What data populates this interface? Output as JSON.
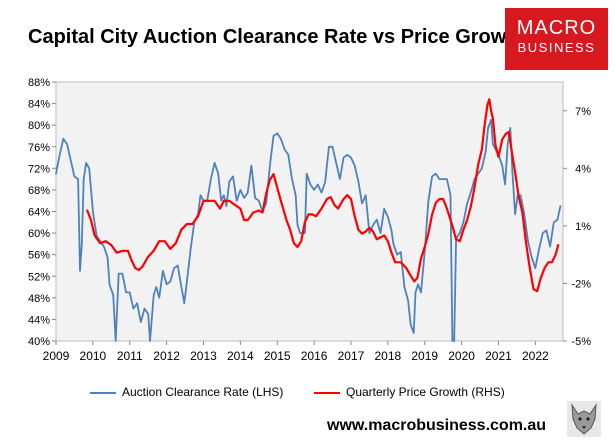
{
  "chart_data": {
    "type": "line",
    "title": "Capital City Auction Clearance Rate vs Price Growth",
    "x_ticks": [
      "2009",
      "2010",
      "2011",
      "2012",
      "2013",
      "2014",
      "2015",
      "2016",
      "2017",
      "2018",
      "2019",
      "2020",
      "2021",
      "2022"
    ],
    "x_range": [
      2009,
      2022.75
    ],
    "y_left": {
      "min": 40,
      "max": 88,
      "ticks": [
        "40%",
        "44%",
        "48%",
        "52%",
        "56%",
        "60%",
        "64%",
        "68%",
        "72%",
        "76%",
        "80%",
        "84%",
        "88%"
      ]
    },
    "y_right": {
      "min": -5,
      "max": 8.5,
      "ticks": [
        "-5%",
        "-2%",
        "1%",
        "4%",
        "7%"
      ],
      "tick_values": [
        -5,
        -2,
        1,
        4,
        7
      ]
    },
    "series": [
      {
        "name": "Auction Clearance Rate (LHS)",
        "axis": "left",
        "color": "#4f81bd",
        "points": [
          [
            2009.0,
            71.0
          ],
          [
            2009.1,
            74.5
          ],
          [
            2009.2,
            77.5
          ],
          [
            2009.3,
            76.5
          ],
          [
            2009.4,
            73.5
          ],
          [
            2009.5,
            70.5
          ],
          [
            2009.6,
            70.0
          ],
          [
            2009.65,
            53.0
          ],
          [
            2009.7,
            58.0
          ],
          [
            2009.75,
            70.0
          ],
          [
            2009.82,
            73.0
          ],
          [
            2009.9,
            72.0
          ],
          [
            2010.0,
            64.0
          ],
          [
            2010.1,
            59.5
          ],
          [
            2010.2,
            58.5
          ],
          [
            2010.3,
            57.5
          ],
          [
            2010.4,
            55.5
          ],
          [
            2010.45,
            50.5
          ],
          [
            2010.55,
            48.5
          ],
          [
            2010.62,
            40.0
          ],
          [
            2010.7,
            52.5
          ],
          [
            2010.8,
            52.5
          ],
          [
            2010.9,
            49.0
          ],
          [
            2011.0,
            49.0
          ],
          [
            2011.1,
            46.0
          ],
          [
            2011.2,
            47.0
          ],
          [
            2011.3,
            43.5
          ],
          [
            2011.4,
            46.0
          ],
          [
            2011.5,
            45.0
          ],
          [
            2011.55,
            40.0
          ],
          [
            2011.65,
            48.5
          ],
          [
            2011.72,
            50.0
          ],
          [
            2011.8,
            48.0
          ],
          [
            2011.9,
            53.0
          ],
          [
            2012.0,
            50.5
          ],
          [
            2012.1,
            51.0
          ],
          [
            2012.2,
            53.5
          ],
          [
            2012.3,
            54.0
          ],
          [
            2012.4,
            50.0
          ],
          [
            2012.48,
            47.0
          ],
          [
            2012.55,
            51.0
          ],
          [
            2012.65,
            57.0
          ],
          [
            2012.75,
            62.0
          ],
          [
            2012.85,
            63.5
          ],
          [
            2012.92,
            67.0
          ],
          [
            2013.0,
            66.0
          ],
          [
            2013.1,
            66.0
          ],
          [
            2013.2,
            70.0
          ],
          [
            2013.3,
            73.0
          ],
          [
            2013.4,
            71.0
          ],
          [
            2013.48,
            66.0
          ],
          [
            2013.55,
            67.0
          ],
          [
            2013.62,
            65.0
          ],
          [
            2013.7,
            69.5
          ],
          [
            2013.8,
            70.5
          ],
          [
            2013.9,
            66.0
          ],
          [
            2014.0,
            68.0
          ],
          [
            2014.1,
            66.5
          ],
          [
            2014.2,
            67.5
          ],
          [
            2014.3,
            72.5
          ],
          [
            2014.4,
            66.5
          ],
          [
            2014.5,
            66.0
          ],
          [
            2014.6,
            64.0
          ],
          [
            2014.7,
            65.5
          ],
          [
            2014.8,
            72.5
          ],
          [
            2014.9,
            78.0
          ],
          [
            2015.0,
            78.5
          ],
          [
            2015.1,
            77.5
          ],
          [
            2015.2,
            75.5
          ],
          [
            2015.3,
            74.5
          ],
          [
            2015.4,
            70.0
          ],
          [
            2015.5,
            67.0
          ],
          [
            2015.55,
            61.5
          ],
          [
            2015.62,
            60.0
          ],
          [
            2015.7,
            60.0
          ],
          [
            2015.75,
            60.0
          ],
          [
            2015.8,
            71.0
          ],
          [
            2015.9,
            69.0
          ],
          [
            2016.0,
            68.0
          ],
          [
            2016.1,
            69.0
          ],
          [
            2016.2,
            67.5
          ],
          [
            2016.3,
            69.5
          ],
          [
            2016.4,
            76.0
          ],
          [
            2016.5,
            76.0
          ],
          [
            2016.6,
            73.0
          ],
          [
            2016.7,
            70.0
          ],
          [
            2016.8,
            74.0
          ],
          [
            2016.9,
            74.5
          ],
          [
            2017.0,
            74.0
          ],
          [
            2017.1,
            72.5
          ],
          [
            2017.2,
            69.5
          ],
          [
            2017.3,
            65.5
          ],
          [
            2017.4,
            67.0
          ],
          [
            2017.5,
            60.0
          ],
          [
            2017.6,
            61.5
          ],
          [
            2017.7,
            62.5
          ],
          [
            2017.8,
            60.0
          ],
          [
            2017.9,
            64.5
          ],
          [
            2018.0,
            63.0
          ],
          [
            2018.1,
            60.5
          ],
          [
            2018.15,
            58.0
          ],
          [
            2018.25,
            56.0
          ],
          [
            2018.35,
            56.5
          ],
          [
            2018.45,
            50.0
          ],
          [
            2018.55,
            47.5
          ],
          [
            2018.62,
            43.0
          ],
          [
            2018.7,
            41.5
          ],
          [
            2018.75,
            49.0
          ],
          [
            2018.82,
            50.5
          ],
          [
            2018.9,
            49.0
          ],
          [
            2019.0,
            56.5
          ],
          [
            2019.1,
            66.0
          ],
          [
            2019.2,
            70.5
          ],
          [
            2019.3,
            71.0
          ],
          [
            2019.4,
            70.0
          ],
          [
            2019.5,
            70.0
          ],
          [
            2019.6,
            70.0
          ],
          [
            2019.7,
            67.0
          ],
          [
            2019.75,
            40.0
          ],
          [
            2019.8,
            40.0
          ],
          [
            2019.85,
            59.0
          ],
          [
            2019.95,
            60.0
          ],
          [
            2020.05,
            62.0
          ],
          [
            2020.15,
            65.5
          ],
          [
            2020.25,
            67.5
          ],
          [
            2020.35,
            70.0
          ],
          [
            2020.45,
            71.0
          ],
          [
            2020.55,
            72.0
          ],
          [
            2020.65,
            75.0
          ],
          [
            2020.72,
            79.5
          ],
          [
            2020.8,
            81.0
          ],
          [
            2020.85,
            76.5
          ],
          [
            2020.92,
            75.5
          ],
          [
            2021.0,
            74.5
          ],
          [
            2021.1,
            72.5
          ],
          [
            2021.18,
            69.0
          ],
          [
            2021.25,
            76.5
          ],
          [
            2021.32,
            79.5
          ],
          [
            2021.38,
            71.0
          ],
          [
            2021.45,
            63.5
          ],
          [
            2021.52,
            67.0
          ],
          [
            2021.6,
            67.0
          ],
          [
            2021.7,
            63.5
          ],
          [
            2021.8,
            58.5
          ],
          [
            2021.9,
            55.5
          ],
          [
            2022.0,
            53.5
          ],
          [
            2022.1,
            57.0
          ],
          [
            2022.2,
            60.0
          ],
          [
            2022.3,
            60.5
          ],
          [
            2022.4,
            57.5
          ],
          [
            2022.5,
            62.0
          ],
          [
            2022.6,
            62.5
          ],
          [
            2022.68,
            65.0
          ]
        ]
      },
      {
        "name": "Quarterly Price Growth (RHS)",
        "axis": "right",
        "color": "#ff0000",
        "points": [
          [
            2009.85,
            1.8
          ],
          [
            2009.95,
            1.3
          ],
          [
            2010.05,
            0.5
          ],
          [
            2010.2,
            0.1
          ],
          [
            2010.35,
            0.2
          ],
          [
            2010.5,
            0.0
          ],
          [
            2010.65,
            -0.4
          ],
          [
            2010.8,
            -0.3
          ],
          [
            2010.95,
            -0.3
          ],
          [
            2011.05,
            -0.8
          ],
          [
            2011.15,
            -1.2
          ],
          [
            2011.25,
            -1.3
          ],
          [
            2011.35,
            -1.1
          ],
          [
            2011.5,
            -0.6
          ],
          [
            2011.65,
            -0.3
          ],
          [
            2011.8,
            0.2
          ],
          [
            2011.95,
            0.2
          ],
          [
            2012.1,
            -0.2
          ],
          [
            2012.25,
            0.1
          ],
          [
            2012.4,
            0.8
          ],
          [
            2012.55,
            1.1
          ],
          [
            2012.7,
            1.1
          ],
          [
            2012.85,
            1.5
          ],
          [
            2013.0,
            2.3
          ],
          [
            2013.15,
            2.3
          ],
          [
            2013.3,
            2.3
          ],
          [
            2013.45,
            1.9
          ],
          [
            2013.55,
            2.3
          ],
          [
            2013.7,
            2.3
          ],
          [
            2013.85,
            2.1
          ],
          [
            2014.0,
            1.9
          ],
          [
            2014.1,
            1.3
          ],
          [
            2014.2,
            1.3
          ],
          [
            2014.35,
            1.7
          ],
          [
            2014.5,
            1.8
          ],
          [
            2014.6,
            1.7
          ],
          [
            2014.7,
            2.7
          ],
          [
            2014.8,
            3.4
          ],
          [
            2014.9,
            3.7
          ],
          [
            2015.0,
            3.0
          ],
          [
            2015.1,
            2.3
          ],
          [
            2015.25,
            1.3
          ],
          [
            2015.35,
            0.8
          ],
          [
            2015.45,
            0.1
          ],
          [
            2015.55,
            -0.1
          ],
          [
            2015.65,
            0.2
          ],
          [
            2015.75,
            1.2
          ],
          [
            2015.85,
            1.6
          ],
          [
            2015.95,
            1.6
          ],
          [
            2016.05,
            1.5
          ],
          [
            2016.2,
            1.9
          ],
          [
            2016.35,
            2.4
          ],
          [
            2016.45,
            2.5
          ],
          [
            2016.55,
            2.1
          ],
          [
            2016.65,
            1.9
          ],
          [
            2016.8,
            2.4
          ],
          [
            2016.9,
            2.6
          ],
          [
            2017.0,
            2.4
          ],
          [
            2017.1,
            1.5
          ],
          [
            2017.2,
            0.8
          ],
          [
            2017.3,
            0.6
          ],
          [
            2017.4,
            0.7
          ],
          [
            2017.5,
            0.9
          ],
          [
            2017.6,
            0.7
          ],
          [
            2017.7,
            0.3
          ],
          [
            2017.8,
            0.4
          ],
          [
            2017.9,
            0.5
          ],
          [
            2018.0,
            0.2
          ],
          [
            2018.1,
            -0.4
          ],
          [
            2018.2,
            -0.9
          ],
          [
            2018.35,
            -0.9
          ],
          [
            2018.5,
            -1.2
          ],
          [
            2018.62,
            -1.6
          ],
          [
            2018.72,
            -1.9
          ],
          [
            2018.8,
            -1.7
          ],
          [
            2018.9,
            -0.7
          ],
          [
            2019.0,
            -0.1
          ],
          [
            2019.1,
            0.6
          ],
          [
            2019.2,
            1.6
          ],
          [
            2019.3,
            2.2
          ],
          [
            2019.4,
            2.4
          ],
          [
            2019.5,
            2.4
          ],
          [
            2019.6,
            1.9
          ],
          [
            2019.75,
            1.0
          ],
          [
            2019.85,
            0.3
          ],
          [
            2019.95,
            0.2
          ],
          [
            2020.05,
            0.8
          ],
          [
            2020.15,
            1.3
          ],
          [
            2020.25,
            2.0
          ],
          [
            2020.35,
            3.0
          ],
          [
            2020.45,
            4.2
          ],
          [
            2020.55,
            5.0
          ],
          [
            2020.62,
            6.2
          ],
          [
            2020.7,
            7.3
          ],
          [
            2020.75,
            7.6
          ],
          [
            2020.8,
            7.0
          ],
          [
            2020.85,
            6.6
          ],
          [
            2020.92,
            5.2
          ],
          [
            2021.0,
            4.6
          ],
          [
            2021.1,
            5.5
          ],
          [
            2021.2,
            5.8
          ],
          [
            2021.28,
            5.9
          ],
          [
            2021.35,
            5.0
          ],
          [
            2021.45,
            3.8
          ],
          [
            2021.55,
            2.5
          ],
          [
            2021.65,
            1.7
          ],
          [
            2021.75,
            0.1
          ],
          [
            2021.85,
            -1.2
          ],
          [
            2021.95,
            -2.3
          ],
          [
            2022.05,
            -2.4
          ],
          [
            2022.15,
            -1.7
          ],
          [
            2022.25,
            -1.2
          ],
          [
            2022.35,
            -0.9
          ],
          [
            2022.45,
            -0.9
          ],
          [
            2022.55,
            -0.5
          ],
          [
            2022.62,
            0.0
          ]
        ]
      }
    ],
    "legend": [
      {
        "label": "Auction Clearance Rate (LHS)",
        "color": "#4f81bd"
      },
      {
        "label": "Quarterly Price Growth (RHS)",
        "color": "#ff0000"
      }
    ],
    "legend_position": "bottom",
    "grid": false
  },
  "branding": {
    "logo_line1": "MACRO",
    "logo_line2": "BUSINESS",
    "url": "www.macrobusiness.com.au"
  },
  "colors": {
    "logo_bg": "#d7191f",
    "plot_bg": "#f2f2f2"
  }
}
